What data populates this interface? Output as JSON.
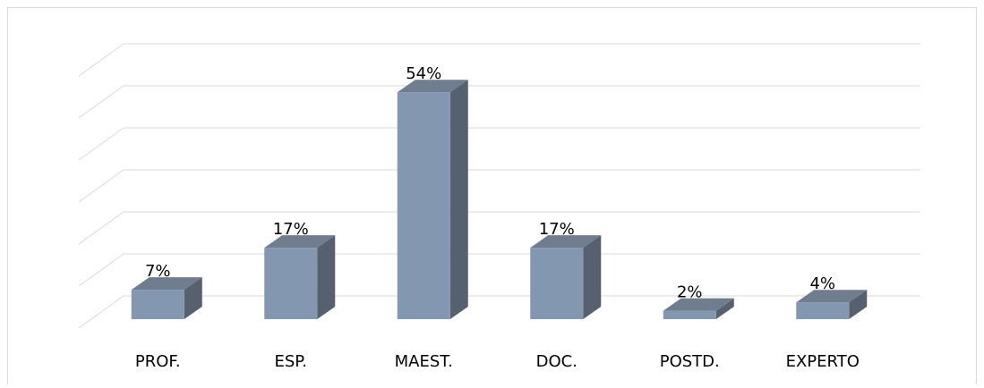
{
  "chart_data": {
    "type": "bar3d",
    "categories": [
      "PROF.",
      "ESP.",
      "MAEST.",
      "DOC.",
      "POSTD.",
      "EXPERTO"
    ],
    "values": [
      7,
      17,
      54,
      17,
      2,
      4
    ],
    "value_labels": [
      "7%",
      "17%",
      "54%",
      "17%",
      "2%",
      "4%"
    ],
    "color": "#8497b0",
    "ylim": [
      0,
      60
    ],
    "yticks": [
      0,
      10,
      20,
      30,
      40,
      50,
      60
    ],
    "grid": true
  }
}
